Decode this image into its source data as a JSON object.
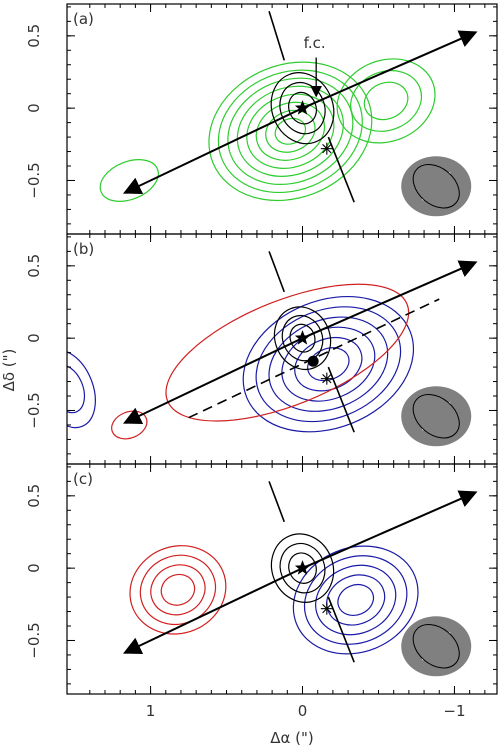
{
  "chart_data": {
    "type": "contour",
    "ylabel": "Δδ (\")",
    "xlabel": "Δα (\")",
    "xlim": [
      1.55,
      -1.28
    ],
    "xticks": [
      {
        "value": 1,
        "label": "1"
      },
      {
        "value": 0,
        "label": "0"
      },
      {
        "value": -1,
        "label": "−1"
      }
    ],
    "panels": [
      {
        "id": "a",
        "label": "(a)",
        "ylim": [
          -0.87,
          0.72
        ],
        "yticks": [
          {
            "value": 0.5,
            "label": "0.5"
          },
          {
            "value": 0,
            "label": "0"
          },
          {
            "value": -0.5,
            "label": "−0.5"
          }
        ],
        "annotation": {
          "text": "f.c.",
          "x": -0.08,
          "y": 0.45
        },
        "annotation_arrow": {
          "from": [
            -0.09,
            0.35
          ],
          "to": [
            -0.09,
            0.09
          ]
        },
        "arrows": [
          {
            "from": [
              0,
              0
            ],
            "to": [
              -1.13,
              0.52
            ],
            "color": "#000000",
            "style": "solid"
          },
          {
            "from": [
              0,
              0
            ],
            "to": [
              1.16,
              -0.58
            ],
            "color": "#000000",
            "style": "solid"
          }
        ],
        "lines": [
          {
            "from": [
              0.22,
              0.67
            ],
            "to": [
              0.12,
              0.33
            ],
            "style": "solid"
          },
          {
            "from": [
              -0.17,
              -0.2
            ],
            "to": [
              -0.34,
              -0.65
            ],
            "style": "solid"
          }
        ],
        "markers": [
          {
            "type": "star",
            "x": 0,
            "y": 0
          },
          {
            "type": "asterisk",
            "x": -0.16,
            "y": -0.28
          }
        ],
        "contours": [
          {
            "color": "#2ecc2e",
            "cx": 0.08,
            "cy": -0.16,
            "rx": 0.55,
            "ry": 0.46,
            "levels": 8
          },
          {
            "color": "#2ecc2e",
            "cx": -0.55,
            "cy": 0.05,
            "rx": 0.33,
            "ry": 0.28,
            "levels": 3
          },
          {
            "color": "#2ecc2e",
            "cx": 1.14,
            "cy": -0.5,
            "rx": 0.2,
            "ry": 0.13,
            "levels": 1
          },
          {
            "color": "#000000",
            "cx": 0,
            "cy": 0,
            "rx": 0.2,
            "ry": 0.25,
            "levels": 3
          }
        ],
        "beam": {
          "major": 0.34,
          "minor": 0.23,
          "pa": 40
        }
      },
      {
        "id": "b",
        "label": "(b)",
        "ylim": [
          -0.87,
          0.72
        ],
        "yticks": [
          {
            "value": 0.5,
            "label": "0.5"
          },
          {
            "value": 0,
            "label": "0"
          },
          {
            "value": -0.5,
            "label": "−0.5"
          }
        ],
        "arrows": [
          {
            "from": [
              0,
              0
            ],
            "to": [
              -1.13,
              0.52
            ],
            "color": "#000000",
            "style": "solid"
          },
          {
            "from": [
              0,
              0
            ],
            "to": [
              1.16,
              -0.58
            ],
            "color": "#000000",
            "style": "solid"
          }
        ],
        "lines": [
          {
            "from": [
              0.22,
              0.6
            ],
            "to": [
              0.12,
              0.32
            ],
            "style": "solid"
          },
          {
            "from": [
              -0.17,
              -0.2
            ],
            "to": [
              -0.34,
              -0.65
            ],
            "style": "solid"
          },
          {
            "from": [
              0.75,
              -0.55
            ],
            "to": [
              -0.9,
              0.27
            ],
            "style": "dashed"
          }
        ],
        "markers": [
          {
            "type": "star",
            "x": 0,
            "y": 0
          },
          {
            "type": "dot",
            "x": -0.07,
            "y": -0.16
          },
          {
            "type": "asterisk",
            "x": -0.16,
            "y": -0.28
          }
        ],
        "contours": [
          {
            "color": "#1a1aa6",
            "cx": -0.17,
            "cy": -0.18,
            "rx": 0.58,
            "ry": 0.44,
            "levels": 6
          },
          {
            "color": "#1a1aa6",
            "cx": 1.55,
            "cy": -0.35,
            "rx": 0.17,
            "ry": 0.28,
            "levels": 2
          },
          {
            "color": "#d12020",
            "cx": 0.1,
            "cy": -0.1,
            "rx": 0.85,
            "ry": 0.36,
            "levels": 1
          },
          {
            "color": "#d12020",
            "cx": 1.14,
            "cy": -0.6,
            "rx": 0.12,
            "ry": 0.09,
            "levels": 1
          },
          {
            "color": "#000000",
            "cx": 0,
            "cy": 0,
            "rx": 0.18,
            "ry": 0.22,
            "levels": 3
          }
        ],
        "beam": {
          "major": 0.34,
          "minor": 0.23,
          "pa": 40
        }
      },
      {
        "id": "c",
        "label": "(c)",
        "ylim": [
          -0.87,
          0.72
        ],
        "yticks": [
          {
            "value": 0.5,
            "label": "0.5"
          },
          {
            "value": 0,
            "label": "0"
          },
          {
            "value": -0.5,
            "label": "−0.5"
          }
        ],
        "arrows": [
          {
            "from": [
              0,
              0
            ],
            "to": [
              -1.13,
              0.52
            ],
            "color": "#000000",
            "style": "solid"
          },
          {
            "from": [
              0,
              0
            ],
            "to": [
              1.16,
              -0.58
            ],
            "color": "#000000",
            "style": "solid"
          }
        ],
        "lines": [
          {
            "from": [
              0.22,
              0.6
            ],
            "to": [
              0.12,
              0.32
            ],
            "style": "solid"
          },
          {
            "from": [
              -0.17,
              -0.2
            ],
            "to": [
              -0.34,
              -0.65
            ],
            "style": "solid"
          }
        ],
        "markers": [
          {
            "type": "star",
            "x": 0,
            "y": 0
          },
          {
            "type": "asterisk",
            "x": -0.16,
            "y": -0.28
          }
        ],
        "contours": [
          {
            "color": "#d12020",
            "cx": 0.82,
            "cy": -0.15,
            "rx": 0.32,
            "ry": 0.3,
            "levels": 4
          },
          {
            "color": "#1a1aa6",
            "cx": -0.35,
            "cy": -0.22,
            "rx": 0.42,
            "ry": 0.36,
            "levels": 5
          },
          {
            "color": "#000000",
            "cx": 0,
            "cy": 0,
            "rx": 0.2,
            "ry": 0.24,
            "levels": 3
          }
        ],
        "beam": {
          "major": 0.34,
          "minor": 0.23,
          "pa": 40
        }
      }
    ]
  }
}
